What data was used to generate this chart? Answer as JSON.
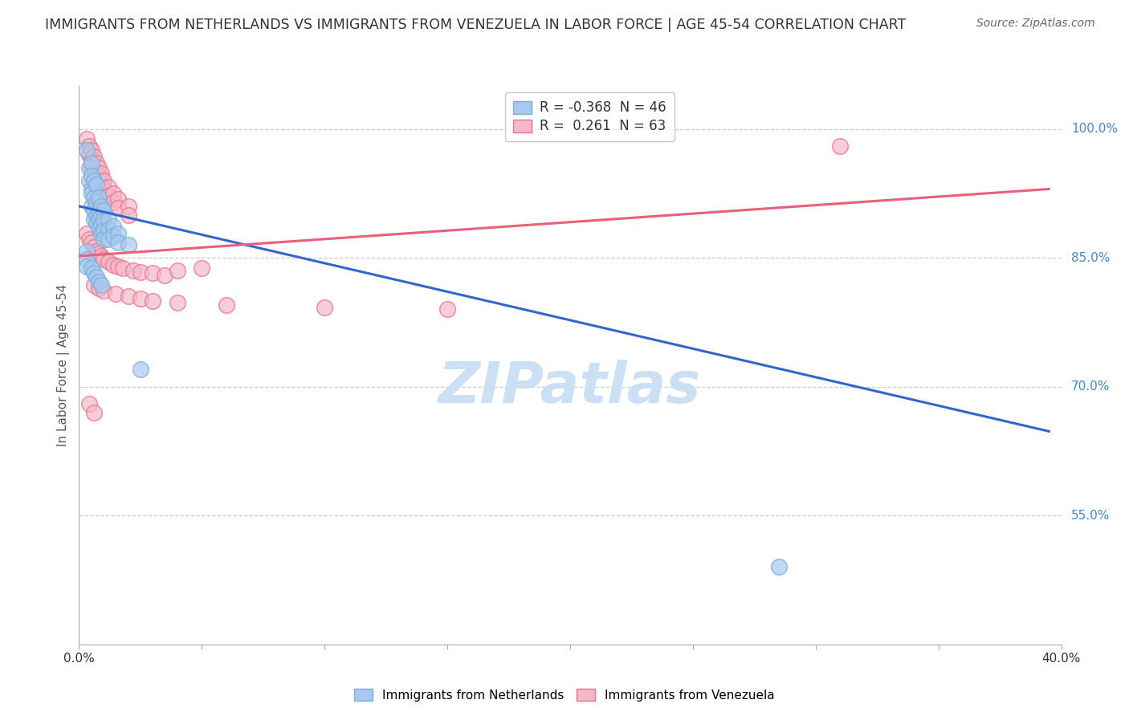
{
  "title": "IMMIGRANTS FROM NETHERLANDS VS IMMIGRANTS FROM VENEZUELA IN LABOR FORCE | AGE 45-54 CORRELATION CHART",
  "source": "Source: ZipAtlas.com",
  "ylabel_left": "In Labor Force | Age 45-54",
  "xlim": [
    0.0,
    0.4
  ],
  "ylim": [
    0.4,
    1.05
  ],
  "xticks": [
    0.0,
    0.05,
    0.1,
    0.15,
    0.2,
    0.25,
    0.3,
    0.35,
    0.4
  ],
  "yticks_right": [
    0.55,
    0.7,
    0.85,
    1.0
  ],
  "ytick_labels_right": [
    "55.0%",
    "70.0%",
    "85.0%",
    "100.0%"
  ],
  "grid_color": "#cccccc",
  "background_color": "#ffffff",
  "watermark": "ZIPatlas",
  "watermark_color": "#cce0f5",
  "nl_color": "#a8c8f0",
  "nl_edge_color": "#7aaed6",
  "nl_line_color": "#3366CC",
  "ve_color": "#f5b8c8",
  "ve_edge_color": "#e87090",
  "ve_line_color": "#e8607a",
  "nl_scatter": [
    [
      0.003,
      0.975
    ],
    [
      0.004,
      0.955
    ],
    [
      0.004,
      0.94
    ],
    [
      0.005,
      0.96
    ],
    [
      0.005,
      0.945
    ],
    [
      0.005,
      0.93
    ],
    [
      0.005,
      0.925
    ],
    [
      0.005,
      0.91
    ],
    [
      0.006,
      0.94
    ],
    [
      0.006,
      0.92
    ],
    [
      0.006,
      0.905
    ],
    [
      0.006,
      0.895
    ],
    [
      0.007,
      0.935
    ],
    [
      0.007,
      0.915
    ],
    [
      0.007,
      0.9
    ],
    [
      0.007,
      0.89
    ],
    [
      0.008,
      0.92
    ],
    [
      0.008,
      0.905
    ],
    [
      0.008,
      0.895
    ],
    [
      0.008,
      0.885
    ],
    [
      0.009,
      0.91
    ],
    [
      0.009,
      0.9
    ],
    [
      0.009,
      0.888
    ],
    [
      0.009,
      0.878
    ],
    [
      0.01,
      0.905
    ],
    [
      0.01,
      0.893
    ],
    [
      0.01,
      0.882
    ],
    [
      0.01,
      0.872
    ],
    [
      0.012,
      0.895
    ],
    [
      0.012,
      0.883
    ],
    [
      0.012,
      0.872
    ],
    [
      0.014,
      0.887
    ],
    [
      0.014,
      0.875
    ],
    [
      0.016,
      0.878
    ],
    [
      0.016,
      0.868
    ],
    [
      0.02,
      0.865
    ],
    [
      0.003,
      0.858
    ],
    [
      0.003,
      0.848
    ],
    [
      0.003,
      0.84
    ],
    [
      0.005,
      0.838
    ],
    [
      0.006,
      0.832
    ],
    [
      0.007,
      0.828
    ],
    [
      0.008,
      0.822
    ],
    [
      0.009,
      0.818
    ],
    [
      0.025,
      0.72
    ],
    [
      0.285,
      0.49
    ]
  ],
  "ve_scatter": [
    [
      0.003,
      0.988
    ],
    [
      0.004,
      0.98
    ],
    [
      0.004,
      0.97
    ],
    [
      0.005,
      0.975
    ],
    [
      0.005,
      0.965
    ],
    [
      0.005,
      0.955
    ],
    [
      0.006,
      0.968
    ],
    [
      0.006,
      0.958
    ],
    [
      0.006,
      0.948
    ],
    [
      0.007,
      0.96
    ],
    [
      0.007,
      0.95
    ],
    [
      0.007,
      0.94
    ],
    [
      0.008,
      0.955
    ],
    [
      0.008,
      0.945
    ],
    [
      0.008,
      0.935
    ],
    [
      0.008,
      0.925
    ],
    [
      0.009,
      0.948
    ],
    [
      0.009,
      0.938
    ],
    [
      0.009,
      0.928
    ],
    [
      0.01,
      0.94
    ],
    [
      0.01,
      0.93
    ],
    [
      0.01,
      0.92
    ],
    [
      0.012,
      0.932
    ],
    [
      0.012,
      0.922
    ],
    [
      0.012,
      0.912
    ],
    [
      0.014,
      0.925
    ],
    [
      0.014,
      0.915
    ],
    [
      0.016,
      0.918
    ],
    [
      0.016,
      0.908
    ],
    [
      0.02,
      0.91
    ],
    [
      0.02,
      0.9
    ],
    [
      0.003,
      0.878
    ],
    [
      0.004,
      0.872
    ],
    [
      0.005,
      0.868
    ],
    [
      0.006,
      0.862
    ],
    [
      0.007,
      0.858
    ],
    [
      0.008,
      0.855
    ],
    [
      0.009,
      0.852
    ],
    [
      0.01,
      0.848
    ],
    [
      0.012,
      0.845
    ],
    [
      0.014,
      0.842
    ],
    [
      0.016,
      0.84
    ],
    [
      0.018,
      0.838
    ],
    [
      0.022,
      0.835
    ],
    [
      0.025,
      0.833
    ],
    [
      0.03,
      0.832
    ],
    [
      0.035,
      0.83
    ],
    [
      0.04,
      0.835
    ],
    [
      0.05,
      0.838
    ],
    [
      0.006,
      0.818
    ],
    [
      0.008,
      0.815
    ],
    [
      0.01,
      0.812
    ],
    [
      0.015,
      0.808
    ],
    [
      0.02,
      0.805
    ],
    [
      0.025,
      0.802
    ],
    [
      0.03,
      0.8
    ],
    [
      0.04,
      0.798
    ],
    [
      0.06,
      0.795
    ],
    [
      0.1,
      0.792
    ],
    [
      0.15,
      0.79
    ],
    [
      0.004,
      0.68
    ],
    [
      0.006,
      0.67
    ],
    [
      0.31,
      0.98
    ]
  ],
  "nl_line": {
    "x0": 0.0,
    "x1": 0.395,
    "y0": 0.91,
    "y1": 0.648
  },
  "ve_line": {
    "x0": 0.0,
    "x1": 0.395,
    "y0": 0.852,
    "y1": 0.93
  },
  "legend_r_blue": "R = -0.368",
  "legend_n_blue": "N = 46",
  "legend_r_pink": "R =  0.261",
  "legend_n_pink": "N = 63",
  "legend_label_blue": "Immigrants from Netherlands",
  "legend_label_pink": "Immigrants from Venezuela"
}
